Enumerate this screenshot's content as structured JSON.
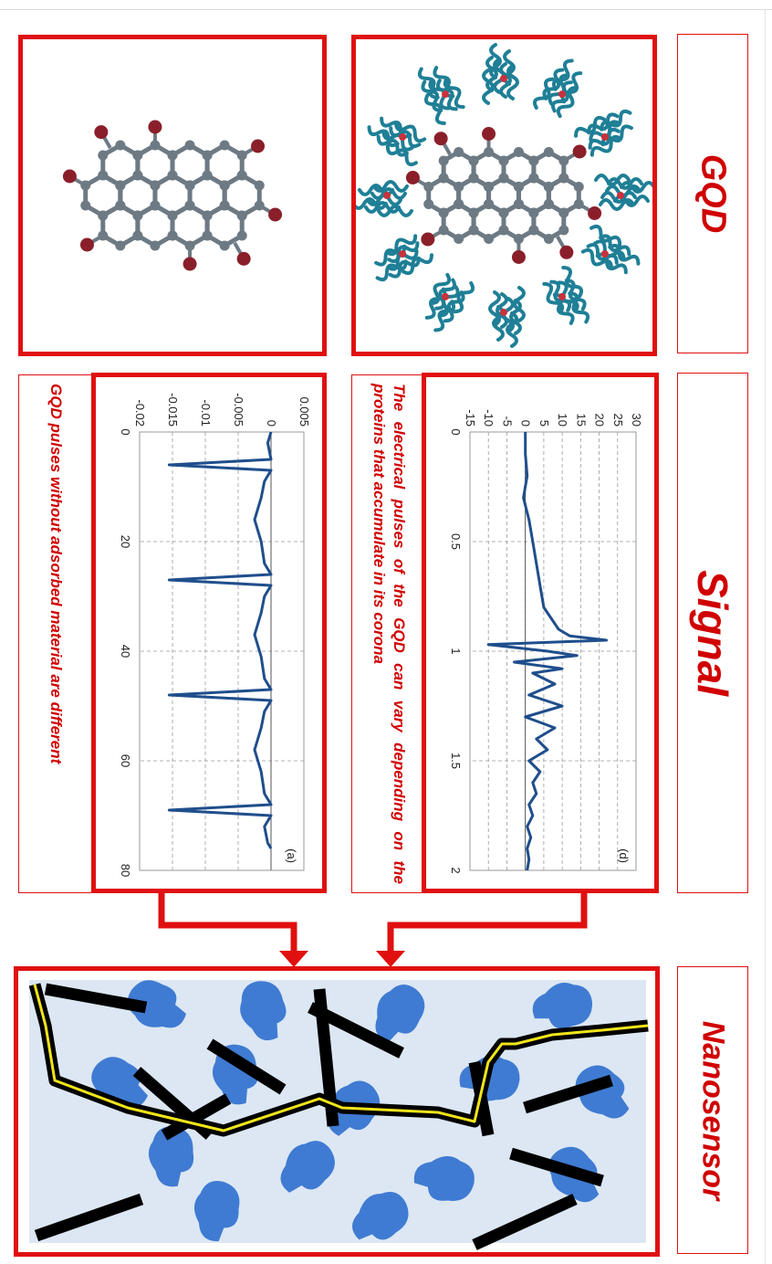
{
  "headers": {
    "gqd": "GQD",
    "signal": "Signal",
    "nanosensor": "Nanosensor"
  },
  "captions": {
    "corona": "The electrical pulses of the GQD can vary depending on the proteins that accumulate in its corona",
    "no_adsorbed": "GQD pulses without adsorbed material are different"
  },
  "chart_data": [
    {
      "type": "line",
      "panel_label": "(d)",
      "x_ticks": [
        "0",
        "0.5",
        "1",
        "1.5",
        "2"
      ],
      "y_ticks": [
        "30",
        "25",
        "20",
        "15",
        "10",
        "5",
        "0",
        "-5",
        "-10",
        "-15"
      ],
      "xlim": [
        0,
        2
      ],
      "ylim": [
        -15,
        30
      ],
      "grid": true,
      "series": [
        {
          "x": [
            0,
            0.1,
            0.2,
            0.3,
            0.4,
            0.5,
            0.6,
            0.7,
            0.8,
            0.85,
            0.9,
            0.93,
            0.95,
            0.97,
            1.0,
            1.02,
            1.05,
            1.08,
            1.1,
            1.15,
            1.2,
            1.25,
            1.3,
            1.35,
            1.4,
            1.45,
            1.5,
            1.55,
            1.6,
            1.65,
            1.7,
            1.75,
            1.8,
            1.85,
            1.9,
            1.95,
            2.0
          ],
          "y": [
            0,
            0,
            0.5,
            -0.5,
            1,
            2,
            3,
            4,
            5,
            7,
            9,
            12,
            22,
            -10,
            6,
            14,
            -3,
            10,
            2,
            8,
            1,
            10,
            0,
            8,
            3,
            6,
            1,
            4,
            2,
            3,
            1,
            2,
            0.5,
            1.5,
            0.5,
            1,
            0.5
          ]
        }
      ]
    },
    {
      "type": "line",
      "panel_label": "(a)",
      "x_ticks": [
        "0",
        "20",
        "40",
        "60",
        "80"
      ],
      "y_ticks": [
        "0.005",
        "0",
        "-0.005",
        "-0.01",
        "-0.015",
        "-0.02"
      ],
      "xlim": [
        0,
        80
      ],
      "ylim": [
        -0.02,
        0.005
      ],
      "grid": true,
      "series": [
        {
          "x": [
            0,
            2,
            5,
            6,
            7,
            9,
            12,
            16,
            20,
            24,
            26,
            27,
            28,
            30,
            33,
            37,
            41,
            45,
            47,
            48,
            49,
            51,
            54,
            58,
            62,
            66,
            68,
            69,
            70,
            72,
            75,
            76
          ],
          "y": [
            0,
            -0.0005,
            0,
            -0.0155,
            0,
            -0.001,
            -0.0015,
            -0.0025,
            -0.0015,
            -0.001,
            0,
            -0.0155,
            0,
            -0.001,
            -0.0015,
            -0.0025,
            -0.0015,
            -0.001,
            0,
            -0.0155,
            0,
            -0.001,
            -0.0015,
            -0.0025,
            -0.0015,
            -0.001,
            0,
            -0.0155,
            0,
            -0.001,
            -0.0005,
            0
          ]
        }
      ]
    }
  ],
  "colors": {
    "frame_red": "#e01010",
    "text_red": "#d00000",
    "trace_blue": "#1f4e8c",
    "protein_teal": "#1f7f96",
    "carbon_gray": "#6d7a84",
    "oxygen_red": "#8a1f2a",
    "sensor_bg": "#dce7f3",
    "protein_blue": "#3f7bd2",
    "pathway_yellow": "#f0e41a"
  }
}
